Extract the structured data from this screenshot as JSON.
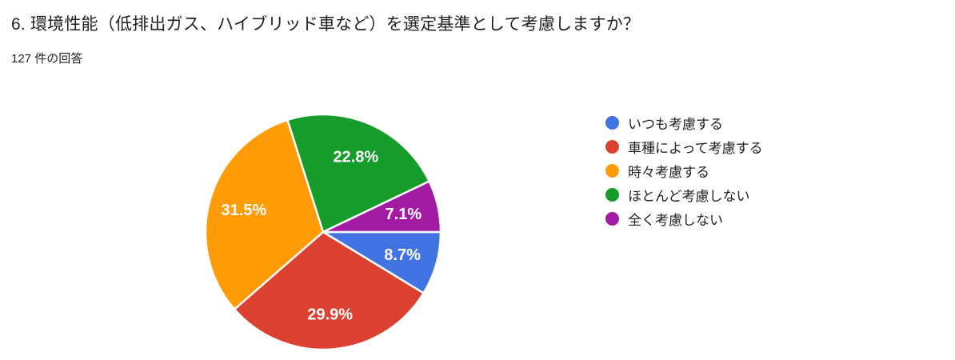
{
  "header": {
    "title": "6. 環境性能（低排出ガス、ハイブリッド車など）を選定基準として考慮しますか？",
    "response_count": "127 件の回答"
  },
  "chart_data": {
    "type": "pie",
    "title": "6. 環境性能（低排出ガス、ハイブリッド車など）を選定基準として考慮しますか？",
    "subtitle": "127 件の回答",
    "legend_position": "right",
    "start_angle_deg": 0,
    "direction": "clockwise",
    "donut": false,
    "label_format": "percent",
    "label_color": "#ffffff",
    "slices": [
      {
        "id": "always",
        "label": "いつも考慮する",
        "value": 8.7,
        "color": "#4173e2"
      },
      {
        "id": "depends-on-model",
        "label": "車種によって考慮する",
        "value": 29.9,
        "color": "#db4030"
      },
      {
        "id": "sometimes",
        "label": "時々考慮する",
        "value": 31.5,
        "color": "#ff9b05"
      },
      {
        "id": "rarely",
        "label": "ほとんど考慮しない",
        "value": 22.8,
        "color": "#159c2b"
      },
      {
        "id": "never",
        "label": "全く考慮しない",
        "value": 7.1,
        "color": "#a31aa3"
      }
    ]
  }
}
